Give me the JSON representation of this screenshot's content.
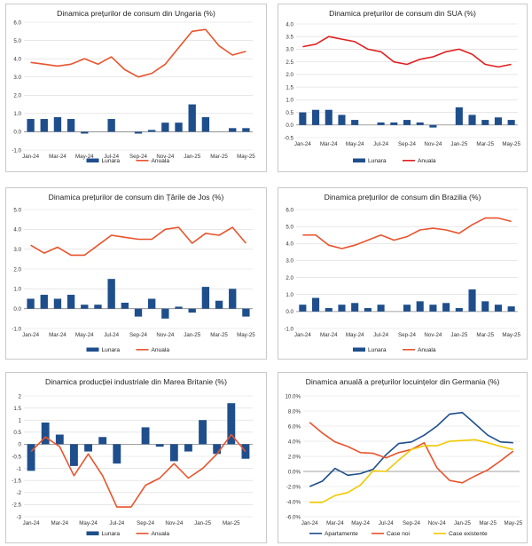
{
  "colors": {
    "bar": "#1f4e8c",
    "line": "#e8542d",
    "us_line": "#e02020",
    "grid": "#d9d9d9",
    "axis": "#888888",
    "green_navy": "#1f4e8c",
    "green_red": "#e8542d",
    "green_yellow": "#f2c800"
  },
  "chart_data": [
    {
      "type": "bar+line",
      "title": "Dinamica prețurilor de consum din Ungaria (%)",
      "ylim": [
        -1.0,
        6.0
      ],
      "yticks": [
        -1.0,
        0.0,
        1.0,
        2.0,
        3.0,
        4.0,
        5.0,
        6.0
      ],
      "tick_decimals": 1,
      "categories": [
        "Jan-24",
        "Feb-24",
        "Mar-24",
        "Apr-24",
        "May-24",
        "Jun-24",
        "Jul-24",
        "Aug-24",
        "Sep-24",
        "Oct-24",
        "Nov-24",
        "Dec-24",
        "Jan-25",
        "Feb-25",
        "Mar-25",
        "Apr-25",
        "May-25"
      ],
      "xtick_labels": [
        "Jan-24",
        "Mar-24",
        "May-24",
        "Jul-24",
        "Sep-24",
        "Nov-24",
        "Jan-25",
        "Mar-25",
        "May-25"
      ],
      "series": [
        {
          "name": "Lunara",
          "kind": "bar",
          "values": [
            0.7,
            0.7,
            0.8,
            0.7,
            -0.1,
            0.0,
            0.7,
            0.0,
            -0.1,
            0.1,
            0.5,
            0.5,
            1.5,
            0.8,
            0.0,
            0.2,
            0.2
          ]
        },
        {
          "name": "Anuala",
          "kind": "line",
          "values": [
            3.8,
            3.7,
            3.6,
            3.7,
            4.0,
            3.7,
            4.1,
            3.4,
            3.0,
            3.2,
            3.7,
            4.6,
            5.5,
            5.6,
            4.7,
            4.2,
            4.4
          ]
        }
      ]
    },
    {
      "type": "bar+line",
      "title": "Dinamica prețurilor de consum din SUA (%)",
      "ylim": [
        -0.5,
        4.0
      ],
      "yticks": [
        -0.5,
        0.0,
        0.5,
        1.0,
        1.5,
        2.0,
        2.5,
        3.0,
        3.5,
        4.0
      ],
      "tick_decimals": 1,
      "categories": [
        "Jan-24",
        "Feb-24",
        "Mar-24",
        "Apr-24",
        "May-24",
        "Jun-24",
        "Jul-24",
        "Aug-24",
        "Sep-24",
        "Oct-24",
        "Nov-24",
        "Dec-24",
        "Jan-25",
        "Feb-25",
        "Mar-25",
        "Apr-25",
        "May-25"
      ],
      "xtick_labels": [
        "Jan-24",
        "Mar-24",
        "May-24",
        "Jul-24",
        "Sep-24",
        "Nov-24",
        "Jan-25",
        "Mar-25",
        "May-25"
      ],
      "series": [
        {
          "name": "Lunara",
          "kind": "bar",
          "values": [
            0.5,
            0.6,
            0.6,
            0.4,
            0.2,
            0.0,
            0.1,
            0.1,
            0.2,
            0.1,
            -0.1,
            0.0,
            0.7,
            0.4,
            0.2,
            0.3,
            0.2
          ]
        },
        {
          "name": "Anuala",
          "kind": "line",
          "values": [
            3.1,
            3.2,
            3.5,
            3.4,
            3.3,
            3.0,
            2.9,
            2.5,
            2.4,
            2.6,
            2.7,
            2.9,
            3.0,
            2.8,
            2.4,
            2.3,
            2.4
          ]
        }
      ]
    },
    {
      "type": "bar+line",
      "title": "Dinamica prețurilor de consum din Țările de Jos (%)",
      "ylim": [
        -1.0,
        5.0
      ],
      "yticks": [
        -1.0,
        0.0,
        1.0,
        2.0,
        3.0,
        4.0,
        5.0
      ],
      "tick_decimals": 1,
      "categories": [
        "Jan-24",
        "Feb-24",
        "Mar-24",
        "Apr-24",
        "May-24",
        "Jun-24",
        "Jul-24",
        "Aug-24",
        "Sep-24",
        "Oct-24",
        "Nov-24",
        "Dec-24",
        "Jan-25",
        "Feb-25",
        "Mar-25",
        "Apr-25",
        "May-25"
      ],
      "xtick_labels": [
        "Jan-24",
        "Mar-24",
        "May-24",
        "Jul-24",
        "Sep-24",
        "Nov-24",
        "Jan-25",
        "Mar-25",
        "May-25"
      ],
      "series": [
        {
          "name": "Lunara",
          "kind": "bar",
          "values": [
            0.5,
            0.7,
            0.5,
            0.7,
            0.2,
            0.2,
            1.5,
            0.3,
            -0.4,
            0.5,
            -0.5,
            0.1,
            -0.2,
            1.1,
            0.4,
            1.0,
            -0.4
          ]
        },
        {
          "name": "Anuala",
          "kind": "line",
          "values": [
            3.2,
            2.8,
            3.1,
            2.7,
            2.7,
            3.2,
            3.7,
            3.6,
            3.5,
            3.5,
            4.0,
            4.1,
            3.3,
            3.8,
            3.7,
            4.1,
            3.3
          ]
        }
      ]
    },
    {
      "type": "bar+line",
      "title": "Dinamica prețurilor de consum din Brazilia (%)",
      "ylim": [
        -1.0,
        6.0
      ],
      "yticks": [
        -1.0,
        0.0,
        1.0,
        2.0,
        3.0,
        4.0,
        5.0,
        6.0
      ],
      "tick_decimals": 1,
      "categories": [
        "Jan-24",
        "Feb-24",
        "Mar-24",
        "Apr-24",
        "May-24",
        "Jun-24",
        "Jul-24",
        "Aug-24",
        "Sep-24",
        "Oct-24",
        "Nov-24",
        "Dec-24",
        "Jan-25",
        "Feb-25",
        "Mar-25",
        "Apr-25",
        "May-25"
      ],
      "xtick_labels": [
        "Jan-24",
        "Mar-24",
        "May-24",
        "Jul-24",
        "Sep-24",
        "Nov-24",
        "Jan-25",
        "Mar-25",
        "May-25"
      ],
      "series": [
        {
          "name": "Lunara",
          "kind": "bar",
          "values": [
            0.4,
            0.8,
            0.2,
            0.4,
            0.5,
            0.2,
            0.4,
            0.0,
            0.4,
            0.6,
            0.4,
            0.5,
            0.2,
            1.3,
            0.6,
            0.4,
            0.3
          ]
        },
        {
          "name": "Anuala",
          "kind": "line",
          "values": [
            4.5,
            4.5,
            3.9,
            3.7,
            3.9,
            4.2,
            4.5,
            4.2,
            4.4,
            4.8,
            4.9,
            4.8,
            4.6,
            5.1,
            5.5,
            5.5,
            5.3
          ]
        }
      ]
    },
    {
      "type": "bar+line",
      "title": "Dinamica producției industriale din Marea Britanie (%)",
      "ylim": [
        -3.0,
        2.0
      ],
      "yticks": [
        -3.0,
        -2.5,
        -2.0,
        -1.5,
        -1.0,
        -0.5,
        0.0,
        0.5,
        1.0,
        1.5,
        2.0
      ],
      "tick_decimals": -1,
      "categories": [
        "Jan-24",
        "Feb-24",
        "Mar-24",
        "Apr-24",
        "May-24",
        "Jun-24",
        "Jul-24",
        "Aug-24",
        "Sep-24",
        "Oct-24",
        "Nov-24",
        "Dec-24",
        "Jan-25",
        "Feb-25",
        "Mar-25",
        "Apr-25"
      ],
      "xtick_labels": [
        "Jan-24",
        "Mar-24",
        "May-24",
        "Jul-24",
        "Sep-24",
        "Nov-24",
        "Jan-25",
        "Mar-25"
      ],
      "series": [
        {
          "name": "Lunara",
          "kind": "bar",
          "values": [
            -1.1,
            0.9,
            0.4,
            -0.9,
            -0.3,
            0.3,
            -0.8,
            0.0,
            0.7,
            -0.1,
            -0.7,
            -0.3,
            1.0,
            -0.4,
            1.7,
            -0.6
          ]
        },
        {
          "name": "Anuala",
          "kind": "line",
          "values": [
            -0.3,
            0.3,
            -0.1,
            -1.3,
            -0.4,
            -1.3,
            -2.6,
            -2.6,
            -1.7,
            -1.4,
            -0.8,
            -1.4,
            -1.0,
            -0.4,
            0.4,
            -0.3
          ]
        }
      ]
    },
    {
      "type": "line",
      "title": "Dinamica anuală a prețurilor locuințelor din Germania (%)",
      "ylim": [
        -6.0,
        10.0
      ],
      "yticks": [
        -6.0,
        -4.0,
        -2.0,
        0.0,
        2.0,
        4.0,
        6.0,
        8.0,
        10.0
      ],
      "tick_decimals": 1,
      "percent": true,
      "categories": [
        "Jan-24",
        "Feb-24",
        "Mar-24",
        "Apr-24",
        "May-24",
        "Jun-24",
        "Jul-24",
        "Aug-24",
        "Sep-24",
        "Oct-24",
        "Nov-24",
        "Dec-24",
        "Jan-25",
        "Feb-25",
        "Mar-25",
        "Apr-25",
        "May-25"
      ],
      "xtick_labels": [
        "Jan-24",
        "Mar-24",
        "May-24",
        "Jul-24",
        "Sep-24",
        "Nov-24",
        "Jan-25",
        "Mar-25",
        "May-25"
      ],
      "series": [
        {
          "name": "Apartamente",
          "kind": "line",
          "values": [
            -2.0,
            -1.3,
            0.4,
            -0.5,
            -0.3,
            0.3,
            2.2,
            3.7,
            3.9,
            4.8,
            6.0,
            7.6,
            7.8,
            6.3,
            4.8,
            3.9,
            3.8
          ]
        },
        {
          "name": "Case noi",
          "kind": "line",
          "values": [
            6.5,
            5.1,
            3.9,
            3.3,
            2.5,
            2.4,
            1.8,
            2.5,
            2.9,
            3.8,
            0.5,
            -1.2,
            -1.5,
            -0.6,
            0.2,
            1.4,
            2.7
          ]
        },
        {
          "name": "Case existente",
          "kind": "line",
          "values": [
            -4.1,
            -4.1,
            -3.2,
            -2.8,
            -1.8,
            0.1,
            0.0,
            1.5,
            2.9,
            3.4,
            3.4,
            4.0,
            4.1,
            4.2,
            3.8,
            3.3,
            2.9
          ]
        }
      ]
    }
  ]
}
